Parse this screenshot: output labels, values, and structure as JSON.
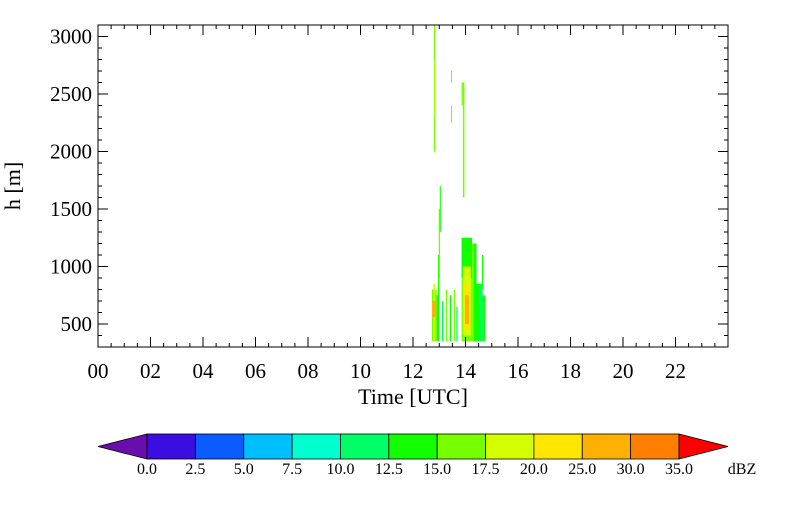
{
  "chart_data": {
    "type": "heatmap",
    "xlabel": "Time [UTC]",
    "ylabel": "h [m]",
    "xlim": [
      0,
      24
    ],
    "ylim": [
      300,
      3100
    ],
    "x_ticks": [
      "00",
      "02",
      "04",
      "06",
      "08",
      "10",
      "12",
      "14",
      "16",
      "18",
      "20",
      "22"
    ],
    "y_ticks": [
      "500",
      "1000",
      "1500",
      "2000",
      "2500",
      "3000"
    ],
    "colorbar": {
      "unit": "dBZ",
      "labels": [
        "0.0",
        "2.5",
        "5.0",
        "7.5",
        "10.0",
        "12.5",
        "15.0",
        "17.5",
        "20.0",
        "25.0",
        "30.0",
        "35.0"
      ],
      "colors": [
        "#6a0dad",
        "#3a0ee0",
        "#0a5cff",
        "#00bfff",
        "#00ffd0",
        "#00ff66",
        "#11ff00",
        "#77ff00",
        "#d4ff00",
        "#ffe600",
        "#ffb000",
        "#ff8000",
        "#ff0000"
      ]
    },
    "cells": [
      {
        "t": 12.72,
        "dt": 0.06,
        "h0": 350,
        "h1": 800,
        "c": "#77ff00"
      },
      {
        "t": 12.78,
        "dt": 0.06,
        "h0": 350,
        "h1": 850,
        "c": "#d4ff00"
      },
      {
        "t": 12.84,
        "dt": 0.06,
        "h0": 350,
        "h1": 800,
        "c": "#77ff00"
      },
      {
        "t": 12.9,
        "dt": 0.05,
        "h0": 350,
        "h1": 750,
        "c": "#11ff00"
      },
      {
        "t": 12.72,
        "dt": 0.16,
        "h0": 560,
        "h1": 700,
        "c": "#ffb000"
      },
      {
        "t": 12.95,
        "dt": 0.05,
        "h0": 350,
        "h1": 1100,
        "c": "#11ff00"
      },
      {
        "t": 12.98,
        "dt": 0.05,
        "h0": 900,
        "h1": 1500,
        "c": "#77ff00"
      },
      {
        "t": 13.02,
        "dt": 0.04,
        "h0": 1300,
        "h1": 1700,
        "c": "#11ff00"
      },
      {
        "t": 13.1,
        "dt": 0.06,
        "h0": 350,
        "h1": 700,
        "c": "#00ff66"
      },
      {
        "t": 13.25,
        "dt": 0.05,
        "h0": 350,
        "h1": 800,
        "c": "#77ff00"
      },
      {
        "t": 13.4,
        "dt": 0.06,
        "h0": 350,
        "h1": 750,
        "c": "#11ff00"
      },
      {
        "t": 13.55,
        "dt": 0.05,
        "h0": 350,
        "h1": 800,
        "c": "#77ff00"
      },
      {
        "t": 13.65,
        "dt": 0.05,
        "h0": 350,
        "h1": 650,
        "c": "#00ff66"
      },
      {
        "t": 12.8,
        "dt": 0.04,
        "h0": 2000,
        "h1": 3100,
        "c": "#77ff00"
      },
      {
        "t": 12.82,
        "dt": 0.03,
        "h0": 2300,
        "h1": 2800,
        "c": "#d4ff00"
      },
      {
        "t": 13.45,
        "dt": 0.03,
        "h0": 2600,
        "h1": 2700,
        "c": "#77ff00"
      },
      {
        "t": 13.45,
        "dt": 0.03,
        "h0": 2250,
        "h1": 2400,
        "c": "#77ff00"
      },
      {
        "t": 13.85,
        "dt": 0.05,
        "h0": 2400,
        "h1": 2600,
        "c": "#77ff00"
      },
      {
        "t": 13.9,
        "dt": 0.06,
        "h0": 1600,
        "h1": 2600,
        "c": "#77ff00"
      },
      {
        "t": 13.85,
        "dt": 0.45,
        "h0": 350,
        "h1": 1200,
        "c": "#77ff00"
      },
      {
        "t": 13.85,
        "dt": 0.4,
        "h0": 900,
        "h1": 1250,
        "c": "#11ff00"
      },
      {
        "t": 13.9,
        "dt": 0.3,
        "h0": 400,
        "h1": 1000,
        "c": "#d4ff00"
      },
      {
        "t": 13.95,
        "dt": 0.22,
        "h0": 450,
        "h1": 850,
        "c": "#ffe600"
      },
      {
        "t": 13.98,
        "dt": 0.15,
        "h0": 500,
        "h1": 750,
        "c": "#ffb000"
      },
      {
        "t": 14.3,
        "dt": 0.12,
        "h0": 350,
        "h1": 1200,
        "c": "#11ff00"
      },
      {
        "t": 14.4,
        "dt": 0.15,
        "h0": 350,
        "h1": 850,
        "c": "#11ff00"
      },
      {
        "t": 14.55,
        "dt": 0.1,
        "h0": 350,
        "h1": 850,
        "c": "#00ff66"
      },
      {
        "t": 14.63,
        "dt": 0.05,
        "h0": 800,
        "h1": 1100,
        "c": "#11ff00"
      },
      {
        "t": 14.65,
        "dt": 0.1,
        "h0": 350,
        "h1": 750,
        "c": "#11ff00"
      }
    ]
  }
}
